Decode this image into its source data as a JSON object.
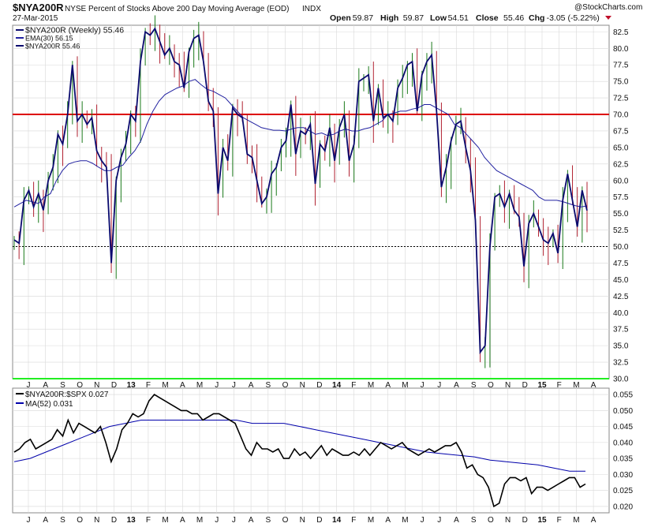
{
  "header": {
    "symbol": "$NYA200R",
    "description": "NYSE Percent of Stocks Above 200 Day Moving Average (EOD)",
    "exchange": "INDX",
    "date": "27-Mar-2015",
    "credit": "@StockCharts.com",
    "stats": [
      {
        "label": "Open",
        "value": "59.87"
      },
      {
        "label": "High",
        "value": "59.87"
      },
      {
        "label": "Low",
        "value": "54.51"
      },
      {
        "label": "Close",
        "value": "55.46"
      },
      {
        "label": "Chg",
        "value": "-3.05 (-5.22%)"
      }
    ]
  },
  "colors": {
    "price": "#0a0a6e",
    "ema": "#2020a0",
    "up_bar": "#1a7a1a",
    "down_bar": "#b02030",
    "red_line": "#dd0000",
    "green_line": "#22ee22",
    "ratio": "#000000",
    "ratio_ma": "#0000aa",
    "grid": "#d8d8d8"
  },
  "legend_main": [
    {
      "name": "$NYA200R (Weekly) 55.46",
      "color": "#0a0a6e"
    },
    {
      "name": "EMA(30) 56.15",
      "color": "#2020a0"
    },
    {
      "name": "$NYA200R 55.46",
      "color": "#0a0a6e"
    }
  ],
  "legend_lower": [
    {
      "name": "$NYA200R:$SPX 0.027",
      "color": "#000000"
    },
    {
      "name": "MA(52) 0.031",
      "color": "#0000aa"
    }
  ],
  "x_labels": [
    "J",
    "A",
    "S",
    "O",
    "N",
    "D",
    "13",
    "F",
    "M",
    "A",
    "M",
    "J",
    "J",
    "A",
    "S",
    "O",
    "N",
    "D",
    "14",
    "F",
    "M",
    "A",
    "M",
    "J",
    "J",
    "A",
    "S",
    "O",
    "N",
    "D",
    "15",
    "F",
    "M",
    "A"
  ],
  "chart_data": [
    {
      "type": "line",
      "title": "$NYA200R NYSE Percent of Stocks Above 200 Day Moving Average (EOD)",
      "ylim": [
        30,
        83.5
      ],
      "yticks": [
        "82.5",
        "80.0",
        "77.5",
        "75.0",
        "72.5",
        "70.0",
        "67.5",
        "65.0",
        "62.5",
        "60.0",
        "57.5",
        "55.0",
        "52.5",
        "50.0",
        "47.5",
        "45.0",
        "42.5",
        "40.0",
        "37.5",
        "35.0",
        "32.5",
        "30.0"
      ],
      "reference_lines": [
        70.0,
        50.0,
        30.0
      ],
      "series": [
        {
          "name": "$NYA200R (Weekly)",
          "values": [
            51.0,
            50.5,
            57.0,
            58.5,
            56.0,
            58.0,
            55.5,
            60.0,
            62.0,
            67.0,
            65.5,
            70.0,
            77.5,
            69.0,
            70.0,
            68.5,
            69.5,
            64.5,
            63.0,
            62.0,
            47.5,
            60.0,
            63.5,
            65.5,
            70.0,
            69.0,
            78.0,
            82.5,
            82.0,
            83.0,
            81.0,
            79.0,
            80.0,
            78.0,
            77.5,
            74.0,
            79.5,
            81.5,
            82.0,
            78.0,
            72.0,
            70.5,
            58.0,
            65.0,
            63.0,
            71.0,
            70.0,
            69.5,
            64.0,
            63.5,
            60.0,
            56.5,
            57.5,
            61.0,
            62.0,
            65.0,
            66.0,
            71.5,
            64.0,
            67.5,
            67.0,
            68.5,
            59.5,
            65.5,
            64.5,
            68.0,
            63.0,
            68.0,
            70.0,
            63.0,
            65.5,
            75.0,
            75.5,
            76.0,
            69.0,
            74.0,
            69.5,
            70.0,
            69.0,
            74.0,
            75.5,
            77.5,
            78.0,
            70.5,
            76.0,
            78.0,
            79.0,
            70.5,
            59.0,
            62.0,
            66.0,
            68.5,
            69.0,
            65.0,
            61.5,
            54.0,
            34.0,
            35.0,
            50.0,
            57.5,
            58.0,
            56.0,
            58.0,
            55.5,
            54.5,
            47.0,
            53.5,
            55.0,
            53.0,
            51.0,
            50.5,
            52.0,
            49.0,
            57.0,
            61.0,
            57.0,
            53.0,
            58.5,
            55.46
          ]
        },
        {
          "name": "EMA(30)",
          "values": [
            56.0,
            56.5,
            57.0,
            56.8,
            56.5,
            57.5,
            58.0,
            60.0,
            61.5,
            62.5,
            62.8,
            63.0,
            63.0,
            62.6,
            62.0,
            61.5,
            61.5,
            62.0,
            62.3,
            63.5,
            64.5,
            66.0,
            68.5,
            70.5,
            72.0,
            73.0,
            73.5,
            74.0,
            74.3,
            75.0,
            75.3,
            74.5,
            73.8,
            73.5,
            73.0,
            72.5,
            71.5,
            70.5,
            69.5,
            69.0,
            68.5,
            68.0,
            67.8,
            67.6,
            67.6,
            67.5,
            67.8,
            68.0,
            68.0,
            67.5,
            67.0,
            67.2,
            66.8,
            67.0,
            67.5,
            67.8,
            67.5,
            67.5,
            67.8,
            68.0,
            68.5,
            69.0,
            70.0,
            70.2,
            70.5,
            70.5,
            70.8,
            71.0,
            71.5,
            71.5,
            71.0,
            70.5,
            70.0,
            68.5,
            68.0,
            67.0,
            66.0,
            65.0,
            63.5,
            62.5,
            61.5,
            61.0,
            60.5,
            60.0,
            59.5,
            59.0,
            58.5,
            57.5,
            57.0,
            57.0,
            57.0,
            56.8,
            56.5,
            56.2,
            56.0,
            56.15
          ]
        }
      ]
    },
    {
      "type": "line",
      "title": "$NYA200R:$SPX",
      "ylim": [
        0.018,
        0.057
      ],
      "yticks": [
        "0.055",
        "0.050",
        "0.045",
        "0.040",
        "0.035",
        "0.030",
        "0.025",
        "0.020"
      ],
      "series": [
        {
          "name": "$NYA200R:$SPX",
          "values": [
            0.037,
            0.038,
            0.04,
            0.041,
            0.038,
            0.039,
            0.04,
            0.041,
            0.044,
            0.042,
            0.047,
            0.043,
            0.046,
            0.045,
            0.044,
            0.043,
            0.045,
            0.04,
            0.034,
            0.038,
            0.044,
            0.046,
            0.049,
            0.048,
            0.049,
            0.053,
            0.055,
            0.054,
            0.053,
            0.052,
            0.051,
            0.05,
            0.05,
            0.049,
            0.049,
            0.047,
            0.048,
            0.049,
            0.049,
            0.048,
            0.047,
            0.046,
            0.042,
            0.038,
            0.036,
            0.04,
            0.038,
            0.038,
            0.037,
            0.038,
            0.035,
            0.035,
            0.038,
            0.036,
            0.037,
            0.035,
            0.037,
            0.039,
            0.036,
            0.038,
            0.037,
            0.036,
            0.036,
            0.037,
            0.036,
            0.038,
            0.036,
            0.038,
            0.04,
            0.039,
            0.038,
            0.039,
            0.04,
            0.038,
            0.037,
            0.036,
            0.037,
            0.038,
            0.037,
            0.038,
            0.039,
            0.039,
            0.04,
            0.037,
            0.032,
            0.033,
            0.03,
            0.029,
            0.026,
            0.02,
            0.021,
            0.027,
            0.029,
            0.029,
            0.028,
            0.029,
            0.024,
            0.026,
            0.026,
            0.025,
            0.026,
            0.027,
            0.028,
            0.029,
            0.029,
            0.026,
            0.027
          ]
        },
        {
          "name": "MA(52)",
          "values": [
            0.034,
            0.035,
            0.037,
            0.039,
            0.041,
            0.043,
            0.045,
            0.046,
            0.047,
            0.047,
            0.047,
            0.047,
            0.047,
            0.047,
            0.047,
            0.046,
            0.046,
            0.046,
            0.045,
            0.044,
            0.043,
            0.042,
            0.041,
            0.04,
            0.039,
            0.038,
            0.037,
            0.0365,
            0.036,
            0.0355,
            0.0345,
            0.034,
            0.0335,
            0.033,
            0.032,
            0.031,
            0.031
          ]
        }
      ]
    }
  ]
}
